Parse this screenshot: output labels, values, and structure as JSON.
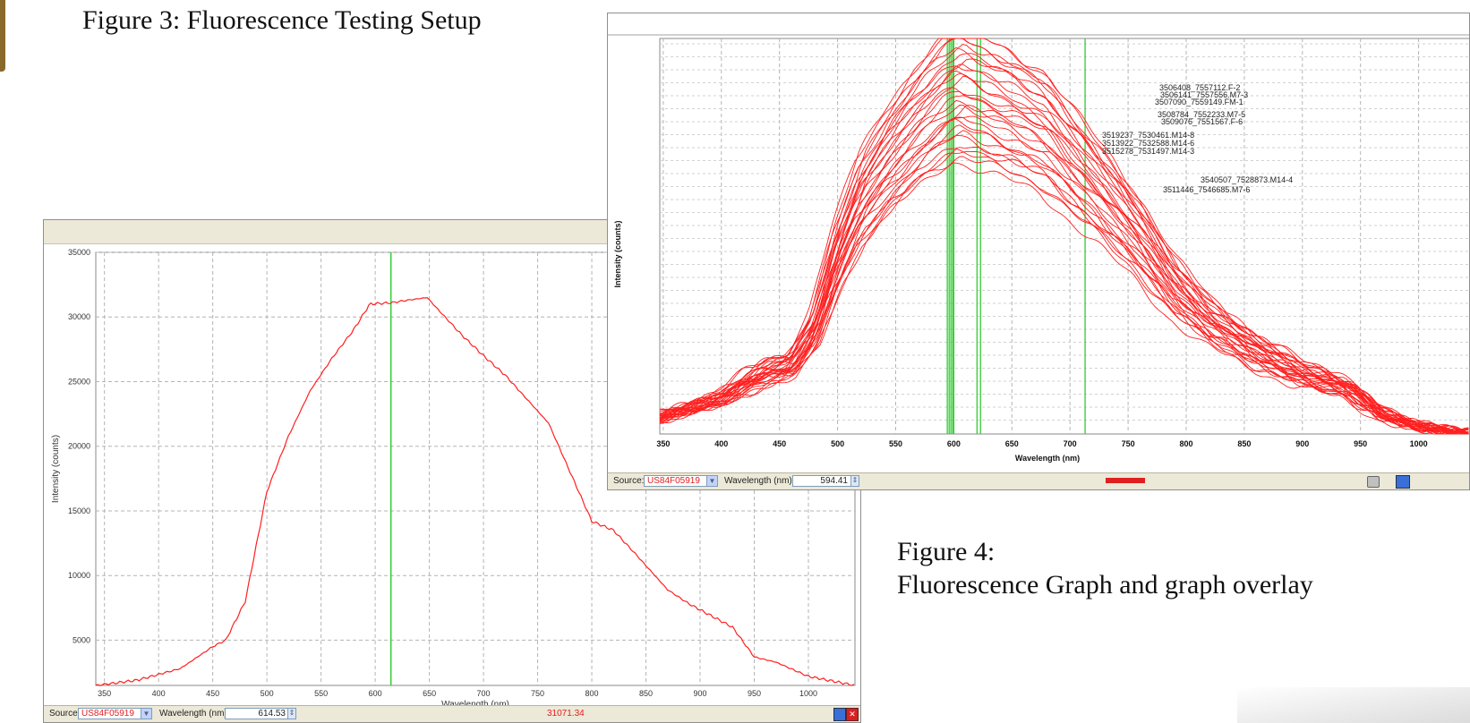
{
  "captions": {
    "figure3": "Figure 3: Fluorescence Testing Setup",
    "figure4_line1": "Figure 4:",
    "figure4_line2": "Fluorescence Graph and graph overlay"
  },
  "colors": {
    "curve": "#ff2020",
    "marker": "#33cc33",
    "panel": "#ece9d8",
    "grid": "#b4b4b4"
  },
  "icons": {
    "dropdown": "chevron-down-icon",
    "spinner": "spinner-icon",
    "close": "close-icon",
    "export": "export-icon",
    "zoom": "zoom-icon"
  },
  "left_window": {
    "status": {
      "source_label": "Source:",
      "source_value": "US84F05919",
      "wavelength_label": "Wavelength (nm):",
      "wavelength_value": "614.53",
      "intensity_readout": "31071.34"
    }
  },
  "right_window": {
    "status": {
      "source_label": "Source:",
      "source_value": "US84F05919",
      "wavelength_label": "Wavelength (nm):",
      "wavelength_value": "594.41"
    },
    "sample_labels": [
      "3506408_7557112.F-2",
      "3506141_7557556.M7-3",
      "3507090_7559149.FM-1",
      "3508784_7552233.M7-5",
      "3509076_7551567.F-6",
      "3519237_7530461.M14-8",
      "3513922_7532588.M14-6",
      "3515278_7531497.M14-3",
      "3540507_7528873.M14-4",
      "3511446_7546685.M7-6"
    ]
  },
  "chart_data": [
    {
      "type": "line",
      "title": "",
      "xlabel": "Wavelength (nm)",
      "ylabel": "Intensity (counts)",
      "xlim": [
        342,
        1043
      ],
      "ylim": [
        1500,
        35000
      ],
      "x_ticks": [
        350,
        400,
        450,
        500,
        550,
        600,
        650,
        700,
        750,
        800,
        850,
        900,
        950,
        1000
      ],
      "y_ticks": [
        5000,
        10000,
        15000,
        20000,
        25000,
        30000,
        35000
      ],
      "grid": true,
      "marker_line_x": 614.53,
      "series": [
        {
          "x": [
            342,
            380,
            420,
            450,
            462,
            480,
            500,
            520,
            540,
            560,
            580,
            595,
            615,
            630,
            648,
            660,
            680,
            700,
            720,
            760,
            800,
            820,
            840,
            870,
            890,
            930,
            950,
            970,
            1000,
            1043
          ],
          "y": [
            1500,
            1900,
            2800,
            4500,
            5000,
            8000,
            16500,
            20800,
            24300,
            26800,
            29000,
            31000,
            31100,
            31300,
            31500,
            30400,
            28600,
            27000,
            25500,
            21800,
            14200,
            13500,
            11700,
            8900,
            7800,
            6000,
            3700,
            3300,
            2200,
            1500
          ]
        }
      ]
    },
    {
      "type": "line",
      "title": "",
      "xlabel": "Wavelength (nm)",
      "ylabel": "Intensity (counts)",
      "xlim": [
        347,
        1045
      ],
      "ylim": [
        0,
        100
      ],
      "x_ticks": [
        350,
        400,
        450,
        500,
        550,
        600,
        650,
        700,
        750,
        800,
        850,
        900,
        950,
        1000
      ],
      "grid": true,
      "marker_lines_x": [
        594.41,
        596,
        597.5,
        599,
        600,
        620,
        623,
        713
      ],
      "series_count": 30,
      "profile": {
        "x": [
          347,
          400,
          440,
          460,
          480,
          500,
          520,
          545,
          570,
          590,
          605,
          620,
          650,
          680,
          700,
          730,
          760,
          790,
          820,
          860,
          900,
          940,
          970,
          1000,
          1045
        ],
        "y": [
          4,
          8,
          15,
          17,
          27,
          47,
          62,
          73,
          82,
          88,
          91,
          89,
          85,
          80,
          73,
          63,
          52,
          39,
          30,
          22,
          16,
          12,
          5,
          2,
          0
        ]
      },
      "gain_range": [
        0.76,
        1.14
      ],
      "tail_range": [
        0.05,
        0.16
      ]
    }
  ]
}
